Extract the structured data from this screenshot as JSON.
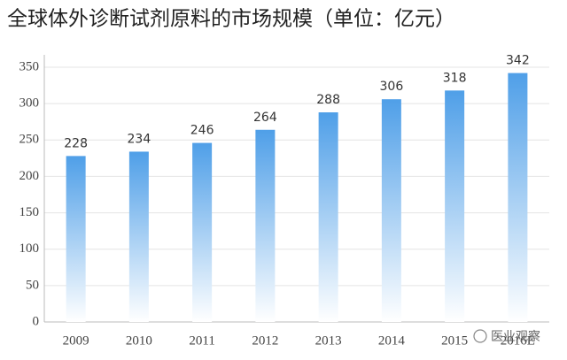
{
  "chart_data": {
    "type": "bar",
    "title": "全球体外诊断试剂原料的市场规模（单位：亿元）",
    "categories": [
      "2009",
      "2010",
      "2011",
      "2012",
      "2013",
      "2014",
      "2015",
      "2016E"
    ],
    "values": [
      228,
      234,
      246,
      264,
      288,
      306,
      318,
      342
    ],
    "color": "#4f9fe8",
    "ylim": [
      0,
      350
    ],
    "yticks": [
      0,
      50,
      100,
      150,
      200,
      250,
      300,
      350
    ],
    "grid": true,
    "watermark": "医业观察"
  }
}
